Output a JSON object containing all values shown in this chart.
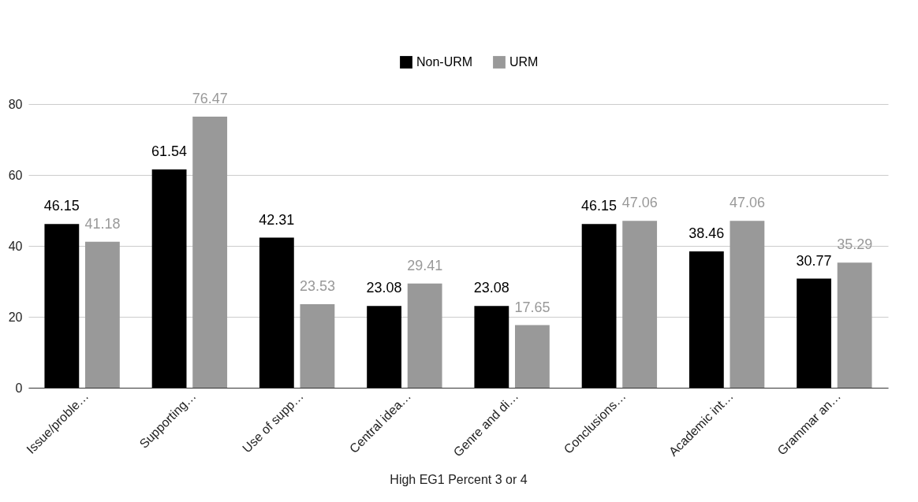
{
  "chart_data": {
    "type": "bar",
    "xlabel": "High EG1 Percent 3 or 4",
    "categories": [
      "Issue/proble…",
      "Supporting…",
      "Use of supp…",
      "Central idea…",
      "Genre and di…",
      "Conclusions…",
      "Academic int…",
      "Grammar an…"
    ],
    "series": [
      {
        "name": "Non-URM",
        "color": "#000000",
        "values": [
          46.15,
          61.54,
          42.31,
          23.08,
          23.08,
          46.15,
          38.46,
          30.77
        ]
      },
      {
        "name": "URM",
        "color": "#999999",
        "values": [
          41.18,
          76.47,
          23.53,
          29.41,
          17.65,
          47.06,
          47.06,
          35.29
        ]
      }
    ],
    "ylim": [
      0,
      80
    ],
    "yticks": [
      0,
      20,
      40,
      60,
      80
    ],
    "grid": "y",
    "legend": "top",
    "data_labels": true
  }
}
